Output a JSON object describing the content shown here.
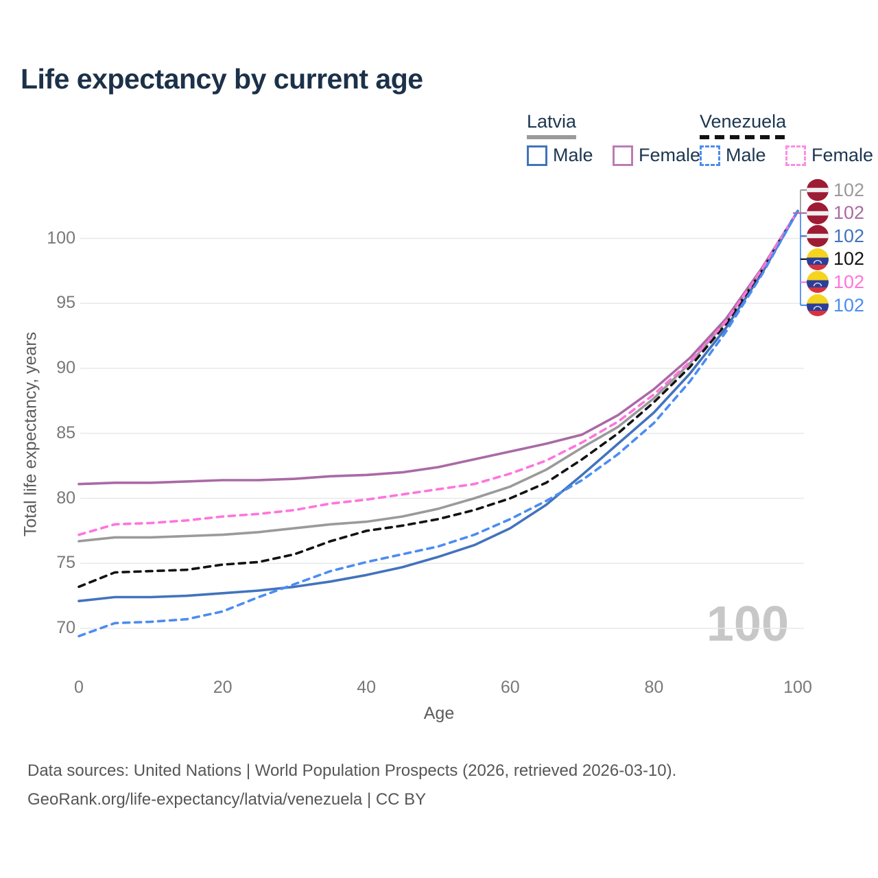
{
  "title": "Life expectancy by current age",
  "legend": {
    "groups": [
      {
        "country": "Latvia",
        "style": "solid",
        "items": [
          {
            "label": "Male"
          },
          {
            "label": "Female"
          }
        ]
      },
      {
        "country": "Venezuela",
        "style": "dashed",
        "items": [
          {
            "label": "Male"
          },
          {
            "label": "Female"
          }
        ]
      }
    ]
  },
  "watermark": "100",
  "footer": {
    "line1": "Data sources: United Nations | World Population Prospects (2026, retrieved 2026-03-10).",
    "line2": "GeoRank.org/life-expectancy/latvia/venezuela | CC BY"
  },
  "flags": {
    "latvia": {
      "red": "#9e1b34",
      "stripe": "#efefef"
    },
    "venezuela": {
      "yellow": "#f4d41f",
      "blue": "#2c3d99",
      "red": "#d6333f",
      "stars": "#ffffff"
    }
  },
  "chart_data": {
    "type": "line",
    "title": "Life expectancy by current age",
    "xlabel": "Age",
    "ylabel": "Total life expectancy, years",
    "xlim": [
      0,
      100
    ],
    "ylim": [
      69,
      103
    ],
    "grid": true,
    "legend_position": "top-right",
    "x_ticks": [
      0,
      20,
      40,
      60,
      80,
      100
    ],
    "y_ticks": [
      100,
      95,
      90,
      85,
      80,
      75,
      70
    ],
    "ages": [
      0,
      5,
      10,
      15,
      20,
      25,
      30,
      35,
      40,
      45,
      50,
      55,
      60,
      65,
      70,
      75,
      80,
      85,
      90,
      95,
      100
    ],
    "series": [
      {
        "id": "latvia-all",
        "name": "Latvia",
        "color": "#9a9a9a",
        "dash": false,
        "values": [
          76.7,
          77.0,
          77.0,
          77.1,
          77.2,
          77.4,
          77.7,
          78.0,
          78.2,
          78.6,
          79.2,
          80.0,
          80.9,
          82.2,
          83.9,
          85.5,
          87.7,
          90.4,
          93.6,
          97.6,
          102.1
        ]
      },
      {
        "id": "latvia-female",
        "name": "Latvia Female",
        "color": "#a96aa5",
        "dash": false,
        "values": [
          81.1,
          81.2,
          81.2,
          81.3,
          81.4,
          81.4,
          81.5,
          81.7,
          81.8,
          82.0,
          82.4,
          83.0,
          83.6,
          84.2,
          84.9,
          86.4,
          88.4,
          90.8,
          93.8,
          97.7,
          102.1
        ]
      },
      {
        "id": "latvia-male",
        "name": "Latvia Male",
        "color": "#4273bd",
        "dash": false,
        "values": [
          72.1,
          72.4,
          72.4,
          72.5,
          72.7,
          72.9,
          73.2,
          73.6,
          74.1,
          74.7,
          75.5,
          76.4,
          77.7,
          79.5,
          81.8,
          84.2,
          86.6,
          89.6,
          93.1,
          97.3,
          102.1
        ]
      },
      {
        "id": "venezuela-all",
        "name": "Venezuela",
        "color": "#121212",
        "dash": true,
        "values": [
          73.2,
          74.3,
          74.4,
          74.5,
          74.9,
          75.1,
          75.7,
          76.7,
          77.5,
          77.9,
          78.4,
          79.1,
          80.0,
          81.2,
          83.0,
          85.0,
          87.4,
          90.1,
          93.4,
          97.5,
          102.1
        ]
      },
      {
        "id": "venezuela-female",
        "name": "Venezuela Female",
        "color": "#ff74dc",
        "dash": true,
        "values": [
          77.2,
          78.0,
          78.1,
          78.3,
          78.6,
          78.8,
          79.1,
          79.6,
          79.9,
          80.3,
          80.7,
          81.1,
          81.9,
          82.9,
          84.3,
          85.9,
          88.0,
          90.5,
          93.6,
          97.6,
          102.1
        ]
      },
      {
        "id": "venezuela-male",
        "name": "Venezuela Male",
        "color": "#4b8cf2",
        "dash": true,
        "values": [
          69.4,
          70.4,
          70.5,
          70.7,
          71.3,
          72.4,
          73.4,
          74.4,
          75.1,
          75.7,
          76.3,
          77.2,
          78.4,
          79.8,
          81.4,
          83.4,
          85.8,
          89.0,
          92.8,
          97.2,
          102.1
        ]
      }
    ],
    "end_labels": [
      {
        "flag": "latvia",
        "value": "102",
        "color": "#9a9a9a"
      },
      {
        "flag": "latvia",
        "value": "102",
        "color": "#a96aa5"
      },
      {
        "flag": "latvia",
        "value": "102",
        "color": "#4273bd"
      },
      {
        "flag": "venezuela",
        "value": "102",
        "color": "#121212"
      },
      {
        "flag": "venezuela",
        "value": "102",
        "color": "#ff74dc"
      },
      {
        "flag": "venezuela",
        "value": "102",
        "color": "#4b8cf2"
      }
    ],
    "watermark": "100"
  }
}
